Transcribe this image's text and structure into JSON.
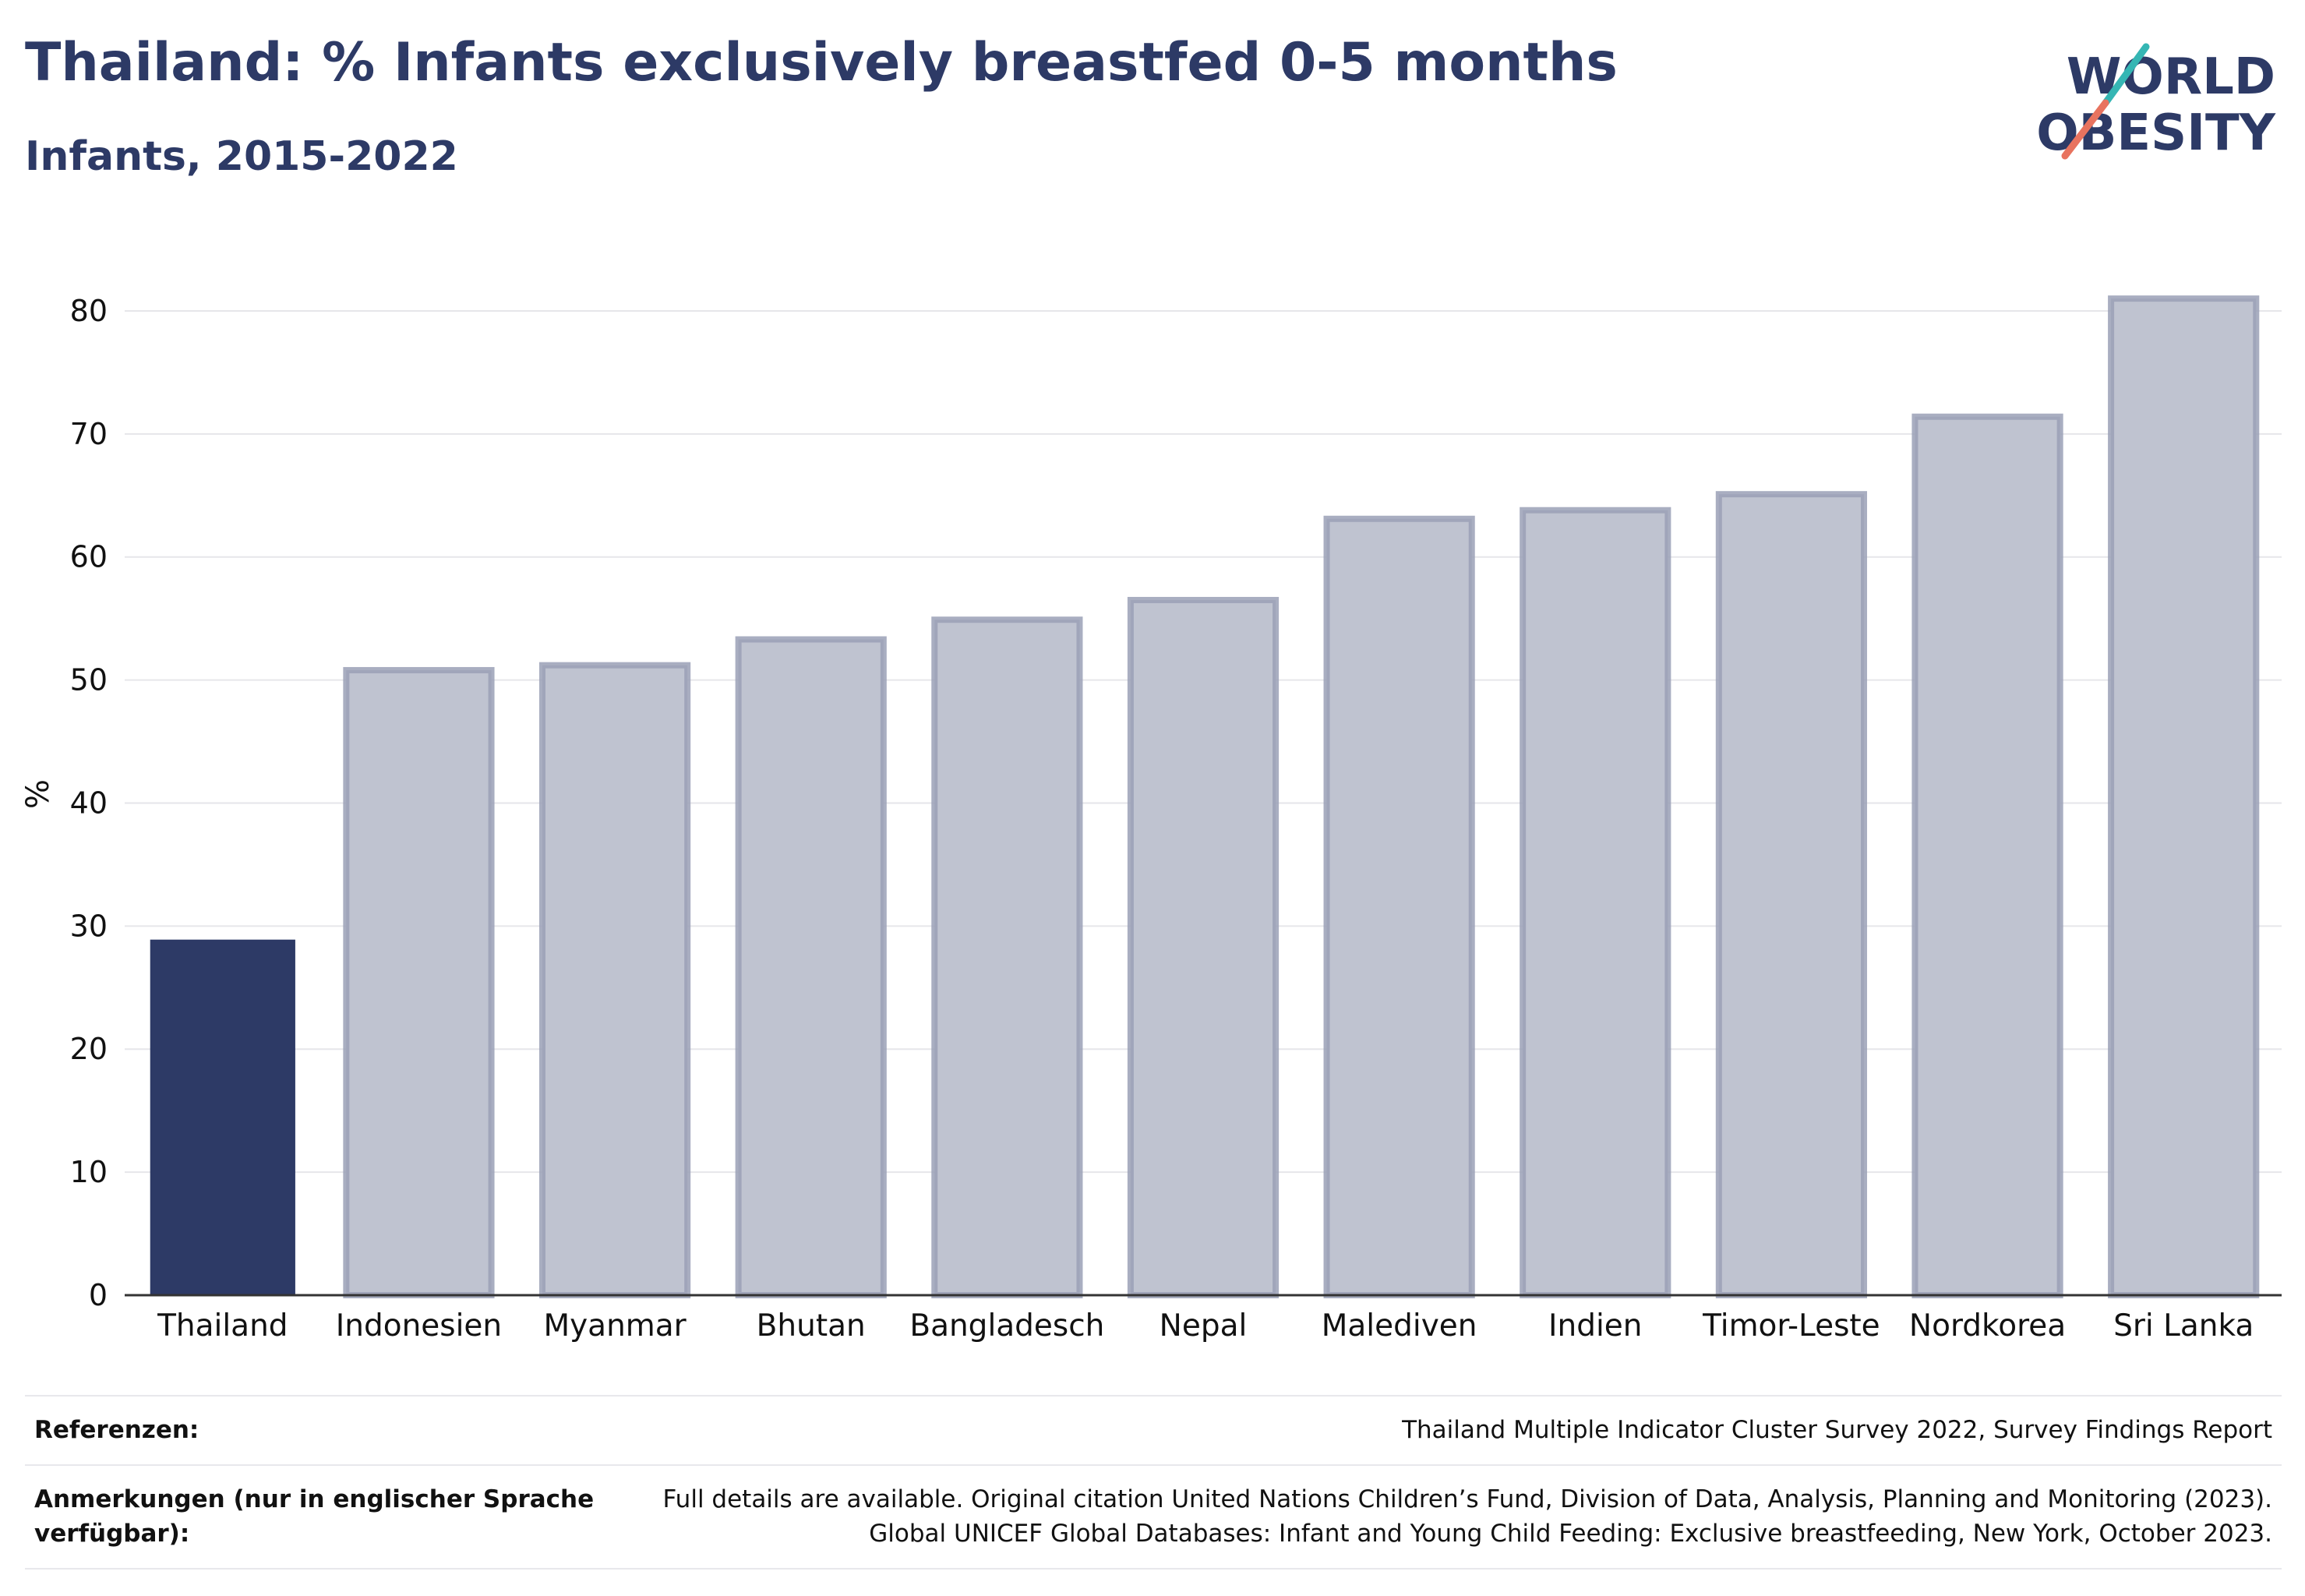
{
  "header": {
    "title": "Thailand: % Infants exclusively breastfed 0-5 months",
    "subtitle": "Infants, 2015-2022"
  },
  "logo": {
    "line1": "WORLD",
    "line2": "OBESITY",
    "icon": "world-obesity-logo",
    "colors": {
      "text": "#2d3a66",
      "teal": "#35b6b4",
      "coral": "#e8735f"
    }
  },
  "chart_data": {
    "type": "bar",
    "categories": [
      "Thailand",
      "Indonesien",
      "Myanmar",
      "Bhutan",
      "Bangladesch",
      "Nepal",
      "Malediven",
      "Indien",
      "Timor-Leste",
      "Nordkorea",
      "Sri Lanka"
    ],
    "values": [
      28.9,
      50.8,
      51.2,
      53.3,
      54.9,
      56.5,
      63.1,
      63.8,
      65.1,
      71.4,
      81.0
    ],
    "highlight": "Thailand",
    "ylabel": "%",
    "xlabel": "",
    "ylim": [
      0,
      85
    ],
    "yticks": [
      0,
      10,
      20,
      30,
      40,
      50,
      60,
      70,
      80
    ],
    "grid": true,
    "colors": {
      "highlight": "#2d3a66",
      "other_fill": "#bfc3d0",
      "other_stroke": "#9aa0b6"
    }
  },
  "notes": {
    "references_label": "Referenzen:",
    "references_value": "Thailand Multiple Indicator Cluster Survey 2022, Survey Findings Report",
    "remarks_label": "Anmerkungen (nur in englischer Sprache verfügbar):",
    "remarks_line1": "Full details are available. Original citation United Nations Children’s Fund, Division of Data, Analysis, Planning and Monitoring (2023).",
    "remarks_line2": "Global UNICEF Global Databases: Infant and Young Child Feeding: Exclusive breastfeeding, New York, October 2023."
  }
}
